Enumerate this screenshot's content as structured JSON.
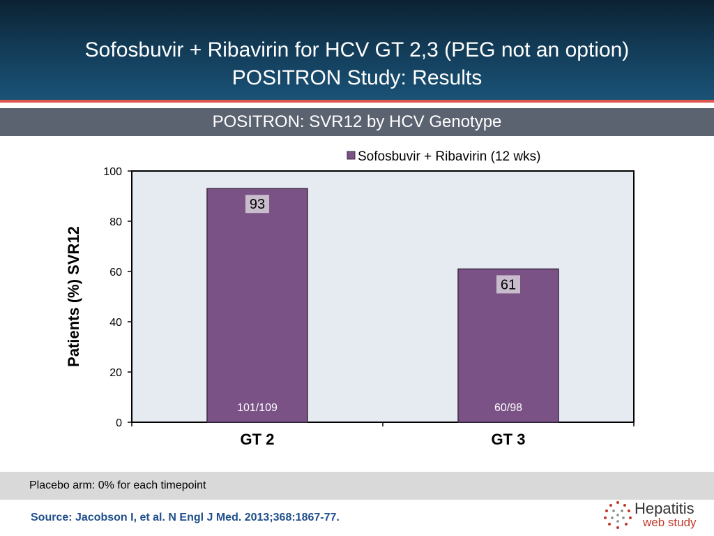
{
  "slide": {
    "title_line1": "Sofosbuvir + Ribavirin for HCV GT 2,3 (PEG not an option)",
    "title_line2": "POSITRON Study: Results",
    "subtitle": "POSITRON: SVR12 by HCV Genotype",
    "footnote": "Placebo arm: 0% for each timepoint",
    "source": "Source: Jacobson I, et al.  N Engl J Med.  2013;368:1867-77.",
    "logo": {
      "word1": "Hepatitis",
      "word2": "web study"
    }
  },
  "colors": {
    "bar": "#7a5286",
    "bar_border": "#3e2a45",
    "plot_bg": "#e6eaf1",
    "label_box": "#c9bccc"
  },
  "chart_data": {
    "type": "bar",
    "title": "POSITRON: SVR12 by HCV Genotype",
    "ylabel": "Patients (%) SVR12",
    "xlabel": "",
    "ylim": [
      0,
      100
    ],
    "yticks": [
      0,
      20,
      40,
      60,
      80,
      100
    ],
    "categories": [
      "GT 2",
      "GT 3"
    ],
    "series": [
      {
        "name": "Sofosbuvir + Ribavirin (12 wks)",
        "values": [
          93,
          61
        ],
        "data_labels": [
          "93",
          "61"
        ],
        "fractions": [
          "101/109",
          "60/98"
        ]
      }
    ],
    "legend": "top-right",
    "grid": false
  }
}
